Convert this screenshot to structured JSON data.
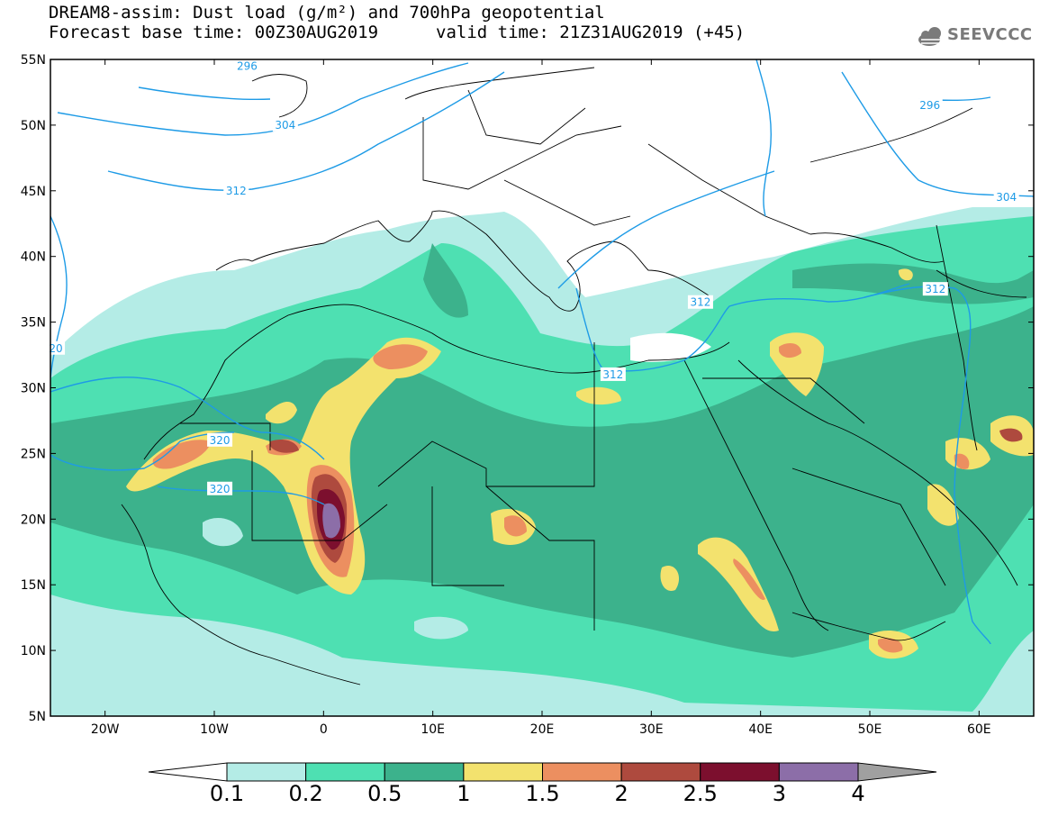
{
  "title": {
    "line1": "DREAM8-assim: Dust load (g/m²) and 700hPa geopotential",
    "line2_left": "Forecast base time: 00Z30AUG2019",
    "line2_right": "valid time: 21Z31AUG2019 (+45)"
  },
  "logo": {
    "text": "SEEVCCC",
    "icon": "cloud-icon",
    "color": "#7a7a7a"
  },
  "axes": {
    "lat_labels": [
      "55N",
      "50N",
      "45N",
      "40N",
      "35N",
      "30N",
      "25N",
      "20N",
      "15N",
      "10N",
      "5N"
    ],
    "lon_labels": [
      "20W",
      "10W",
      "0",
      "10E",
      "20E",
      "30E",
      "40E",
      "50E",
      "60E"
    ],
    "lat_range": [
      5,
      55
    ],
    "lon_range": [
      -25,
      65
    ]
  },
  "contours": {
    "variable": "700hPa geopotential",
    "labels": [
      {
        "text": "296",
        "lon": 55.5,
        "lat": 51.5
      },
      {
        "text": "304",
        "lon": -3.5,
        "lat": 50.0
      },
      {
        "text": "304",
        "lon": 62.5,
        "lat": 44.5
      },
      {
        "text": "312",
        "lon": -8.0,
        "lat": 45.0
      },
      {
        "text": "312",
        "lon": 34.5,
        "lat": 36.5
      },
      {
        "text": "312",
        "lon": 26.5,
        "lat": 31.0
      },
      {
        "text": "312",
        "lon": 56.0,
        "lat": 37.5
      },
      {
        "text": "320",
        "lon": -9.5,
        "lat": 26.0
      },
      {
        "text": "320",
        "lon": -9.5,
        "lat": 22.3
      },
      {
        "text": "20",
        "lon": -24.5,
        "lat": 33.0
      },
      {
        "text": "296",
        "lon": -7.0,
        "lat": 54.5
      }
    ],
    "color": "#1e9be6"
  },
  "colorbar": {
    "ticks": [
      "0.1",
      "0.2",
      "0.5",
      "1",
      "1.5",
      "2",
      "2.5",
      "3",
      "4"
    ],
    "colors": [
      "#b4ece6",
      "#4ee0b2",
      "#3cb28c",
      "#f3e26e",
      "#ec8f60",
      "#ae4a3e",
      "#7c0f2e",
      "#8c6ea8",
      "#a0a0a0"
    ]
  }
}
